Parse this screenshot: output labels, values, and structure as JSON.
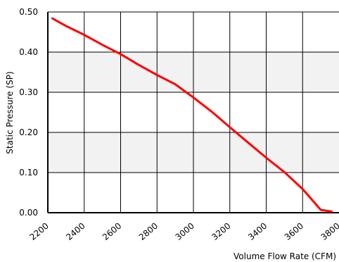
{
  "chart_data": {
    "type": "line",
    "title": "",
    "xlabel": "Volume Flow Rate (CFM)",
    "ylabel": "Static Pressure (SP)",
    "xlim": [
      2200,
      3800
    ],
    "ylim": [
      0,
      0.5
    ],
    "x_ticks": [
      2200,
      2400,
      2600,
      2800,
      3000,
      3200,
      3400,
      3600,
      3800
    ],
    "x_tick_labels": [
      "2200",
      "2400",
      "2600",
      "2800",
      "3000",
      "3200",
      "3400",
      "3600",
      "3800"
    ],
    "y_ticks": [
      0,
      0.1,
      0.2,
      0.3,
      0.4,
      0.5
    ],
    "y_tick_labels": [
      "0.00",
      "0.10",
      "0.20",
      "0.30",
      "0.40",
      "0.50"
    ],
    "grid": true,
    "legend": "none",
    "series": [
      {
        "color": "#ff0000",
        "x": [
          2225,
          2300,
          2400,
          2500,
          2600,
          2700,
          2800,
          2900,
          3000,
          3100,
          3200,
          3300,
          3400,
          3500,
          3600,
          3700,
          3760
        ],
        "y": [
          0.484,
          0.465,
          0.443,
          0.418,
          0.395,
          0.368,
          0.343,
          0.32,
          0.287,
          0.252,
          0.213,
          0.175,
          0.137,
          0.101,
          0.059,
          0.007,
          0.003
        ]
      }
    ]
  },
  "colors": {
    "band": "#f2f2f2",
    "grid": "#000000",
    "line": "#ff0000"
  }
}
